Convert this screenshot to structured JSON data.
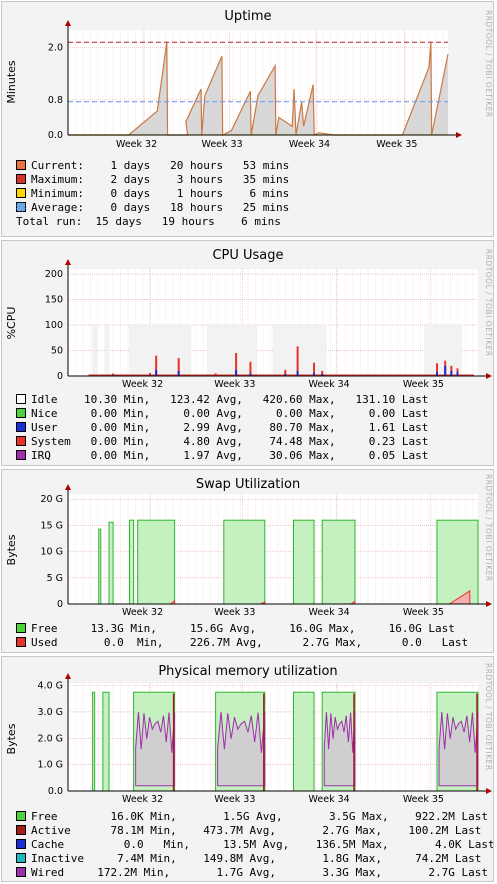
{
  "watermark": "RRDTOOL / TOBI OETIKER",
  "chart_data": [
    {
      "type": "area",
      "title": "Uptime",
      "ylabel": "Minutes",
      "yticks": [
        "0.0",
        "0.8",
        "2.0"
      ],
      "ytick_values": [
        0,
        0.8,
        2.0
      ],
      "ylim": [
        0,
        2.4
      ],
      "x_weeks": [
        "Week 32",
        "Week 33",
        "Week 34",
        "Week 35"
      ],
      "hlines": [
        {
          "name": "Maximum",
          "value": 2.12,
          "color": "#b22222"
        },
        {
          "name": "Average",
          "value": 0.76,
          "color": "#6495ed"
        },
        {
          "name": "Minimum",
          "value": 0.005,
          "color": "#ffd700"
        }
      ],
      "series": [
        {
          "name": "Current",
          "color": "#cc7744",
          "fill": "#d8d8d8",
          "points": [
            [
              0.0,
              0
            ],
            [
              0.13,
              0
            ],
            [
              0.16,
              0
            ],
            [
              0.235,
              0.55
            ],
            [
              0.26,
              2.12
            ],
            [
              0.262,
              0
            ],
            [
              0.315,
              0
            ],
            [
              0.31,
              0.3
            ],
            [
              0.35,
              1.05
            ],
            [
              0.352,
              0
            ],
            [
              0.36,
              0.9
            ],
            [
              0.405,
              1.8
            ],
            [
              0.407,
              0
            ],
            [
              0.43,
              0.1
            ],
            [
              0.48,
              1.0
            ],
            [
              0.482,
              0
            ],
            [
              0.5,
              0.9
            ],
            [
              0.545,
              1.58
            ],
            [
              0.547,
              0
            ],
            [
              0.555,
              0.4
            ],
            [
              0.59,
              0.2
            ],
            [
              0.595,
              1.05
            ],
            [
              0.6,
              0
            ],
            [
              0.615,
              0.75
            ],
            [
              0.62,
              0.2
            ],
            [
              0.645,
              1.15
            ],
            [
              0.648,
              0
            ],
            [
              0.66,
              0.05
            ],
            [
              0.7,
              0
            ],
            [
              0.88,
              0
            ],
            [
              0.95,
              1.55
            ],
            [
              0.955,
              2.12
            ],
            [
              0.957,
              0
            ],
            [
              1.0,
              1.85
            ]
          ]
        }
      ],
      "legend": [
        {
          "label": "Current:",
          "color": "#e8743b",
          "mark": "square",
          "text": "1 days   20 hours   53 mins"
        },
        {
          "label": "Maximum:",
          "color": "#d73027",
          "mark": "x",
          "text": "2 days    3 hours   35 mins"
        },
        {
          "label": "Minimum:",
          "color": "#ffd700",
          "mark": "square",
          "text": "0 days    1 hours    6 mins"
        },
        {
          "label": "Average:",
          "color": "#6aa9e9",
          "mark": "dashed",
          "text": "0 days   18 hours   25 mins"
        },
        {
          "label": "Total run:",
          "color": "",
          "mark": "none",
          "text": "15 days   19 hours    6 mins"
        }
      ]
    },
    {
      "type": "area",
      "title": "CPU Usage",
      "ylabel": "%CPU",
      "yticks": [
        "0",
        "50",
        "100",
        "150",
        "200"
      ],
      "ytick_values": [
        0,
        50,
        100,
        150,
        200
      ],
      "ylim": [
        0,
        210
      ],
      "x_weeks": [
        "Week 32",
        "Week 33",
        "Week 34",
        "Week 35"
      ],
      "idle_bands": [
        [
          0.06,
          0.07
        ],
        [
          0.09,
          0.1
        ],
        [
          0.15,
          0.3
        ],
        [
          0.34,
          0.46
        ],
        [
          0.5,
          0.63
        ],
        [
          0.87,
          0.96
        ]
      ],
      "series": [
        {
          "name": "System",
          "color": "#e8312a"
        },
        {
          "name": "User",
          "color": "#1c2fd4"
        },
        {
          "name": "IRQ",
          "color": "#a02eae"
        }
      ],
      "spikes": [
        [
          0.11,
          5,
          2
        ],
        [
          0.2,
          6,
          2
        ],
        [
          0.215,
          40,
          12
        ],
        [
          0.27,
          35,
          10
        ],
        [
          0.36,
          5,
          1
        ],
        [
          0.41,
          45,
          12
        ],
        [
          0.445,
          28,
          5
        ],
        [
          0.53,
          12,
          4
        ],
        [
          0.56,
          58,
          10
        ],
        [
          0.6,
          26,
          6
        ],
        [
          0.62,
          10,
          4
        ],
        [
          0.9,
          25,
          8
        ],
        [
          0.92,
          30,
          20
        ],
        [
          0.935,
          20,
          10
        ],
        [
          0.95,
          15,
          8
        ]
      ],
      "legend": [
        {
          "label": "Idle",
          "color": "#ffffff",
          "stats": "   10.30 Min,   123.42 Avg,   420.60 Max,   131.10 Last"
        },
        {
          "label": "Nice",
          "color": "#4cd43c",
          "stats": "    0.00 Min,     0.00 Avg,     0.00 Max,     0.00 Last"
        },
        {
          "label": "User",
          "color": "#1c2fd4",
          "stats": "    0.00 Min,     2.99 Avg,    80.70 Max,     1.61 Last"
        },
        {
          "label": "System",
          "color": "#e8312a",
          "stats": "  0.00 Min,     4.80 Avg,    74.48 Max,     0.23 Last"
        },
        {
          "label": "IRQ",
          "color": "#a02eae",
          "stats": "     0.00 Min,     1.97 Avg,    30.06 Max,     0.05 Last"
        }
      ]
    },
    {
      "type": "area",
      "title": "Swap Utilization",
      "ylabel": "Bytes",
      "yticks": [
        "0",
        "5 G",
        "10 G",
        "15 G",
        "20 G"
      ],
      "ytick_values": [
        0,
        5,
        10,
        15,
        20
      ],
      "ylim": [
        0,
        21
      ],
      "x_weeks": [
        "Week 32",
        "Week 33",
        "Week 34",
        "Week 35"
      ],
      "free_segments": [
        [
          0.075,
          0.08,
          14.3
        ],
        [
          0.1,
          0.11,
          15.6
        ],
        [
          0.15,
          0.16,
          16.0
        ],
        [
          0.17,
          0.26,
          16.0
        ],
        [
          0.38,
          0.48,
          16.0
        ],
        [
          0.55,
          0.6,
          16.0
        ],
        [
          0.62,
          0.7,
          16.0
        ],
        [
          0.9,
          1.0,
          16.0
        ]
      ],
      "used_bumps": [
        [
          0.25,
          0.26,
          0.6
        ],
        [
          0.47,
          0.48,
          0.4
        ],
        [
          0.69,
          0.7,
          0.5
        ],
        [
          0.93,
          0.98,
          2.5
        ]
      ],
      "legend": [
        {
          "label": "Free",
          "color": "#4cd43c",
          "stats": "    13.3G Min,     15.6G Avg,     16.0G Max,     16.0G Last"
        },
        {
          "label": "Used",
          "color": "#e8312a",
          "stats": "      0.0  Min,    226.7M Avg,      2.7G Max,      0.0   Last"
        }
      ]
    },
    {
      "type": "area",
      "title": "Physical memory utilization",
      "ylabel": "Bytes",
      "yticks": [
        "0.0",
        "1.0 G",
        "2.0 G",
        "3.0 G",
        "4.0 G"
      ],
      "ytick_values": [
        0,
        1,
        2,
        3,
        4
      ],
      "ylim": [
        0,
        4.1
      ],
      "x_weeks": [
        "Week 32",
        "Week 33",
        "Week 34",
        "Week 35"
      ],
      "free_segments": [
        [
          0.06,
          0.065
        ],
        [
          0.085,
          0.1
        ],
        [
          0.16,
          0.26
        ],
        [
          0.36,
          0.48
        ],
        [
          0.55,
          0.6
        ],
        [
          0.62,
          0.7
        ],
        [
          0.9,
          1.0
        ]
      ],
      "legend": [
        {
          "label": "Free",
          "color": "#4cd43c",
          "stats": "       16.0K Min,       1.5G Avg,       3.5G Max,    922.2M Last"
        },
        {
          "label": "Active",
          "color": "#a31d1d",
          "stats": "     78.1M Min,    473.7M Avg,       2.7G Max,    100.2M Last"
        },
        {
          "label": "Cache",
          "color": "#1c2fd4",
          "stats": "        0.0   Min,     13.5M Avg,    136.5M Max,       4.0K Last"
        },
        {
          "label": "Inactive",
          "color": "#20b8c0",
          "stats": "    7.4M Min,    149.8M Avg,       1.8G Max,     74.2M Last"
        },
        {
          "label": "Wired",
          "color": "#a02eae",
          "stats": "    172.2M Min,       1.7G Avg,       3.3G Max,       2.7G Last"
        }
      ]
    }
  ]
}
